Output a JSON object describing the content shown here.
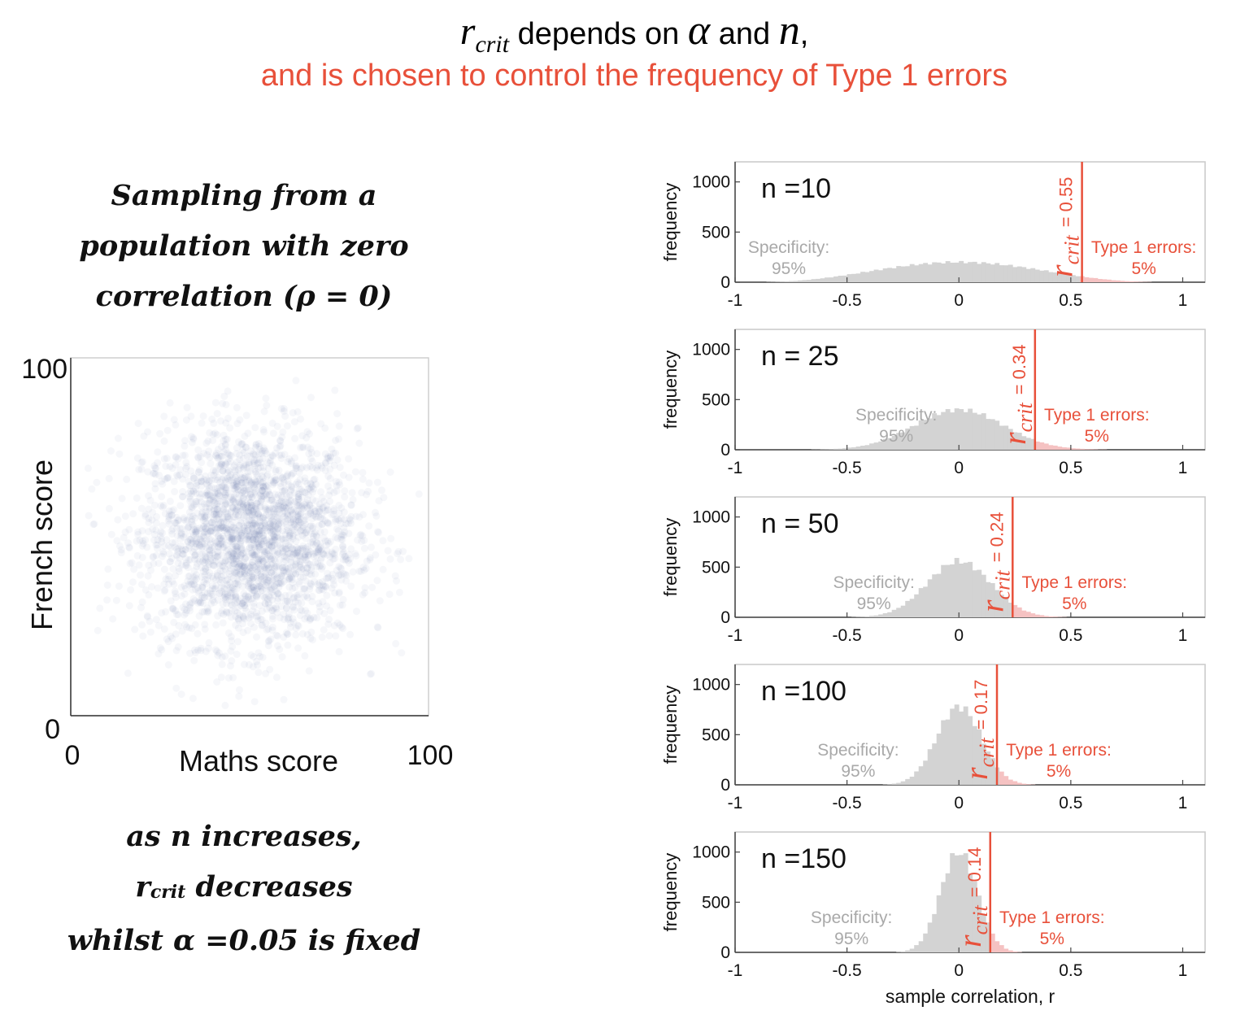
{
  "title": {
    "r_symbol": "r",
    "r_subscript": "crit",
    "depends_on": " depends on ",
    "alpha_symbol": "α",
    "and": " and ",
    "n_symbol": "n",
    "comma": ",",
    "subtitle": "and is chosen to control the frequency of Type 1 errors"
  },
  "left_text": {
    "line1": "Sampling from a",
    "line2": "population with zero",
    "line3": "correlation (ρ = 0)",
    "bottom1": "as n increases,",
    "bottom2_r": "r",
    "bottom2_sub": "crit",
    "bottom2_rest": " decreases",
    "bottom3": "whilst α =0.05 is fixed"
  },
  "colors": {
    "accent": "#e8503a",
    "gray_bars": "#d3d3d3",
    "red_bars": "#f5c2c2",
    "scatter_dot": "#4a5fa0"
  },
  "chart_data": [
    {
      "type": "scatter",
      "xlabel": "Maths score",
      "ylabel": "French score",
      "xlim": [
        0,
        100
      ],
      "ylim": [
        0,
        100
      ],
      "xticks": [
        "0",
        "100"
      ],
      "yticks": [
        "0",
        "100"
      ],
      "population_correlation": 0,
      "center": [
        50,
        50
      ],
      "spread_sd": 15
    },
    {
      "type": "bar",
      "subplots": [
        {
          "n_label": "n =10",
          "n": 10,
          "r_crit": 0.55,
          "r_crit_label": "= 0.55",
          "sd": 0.33
        },
        {
          "n_label": "n = 25",
          "n": 25,
          "r_crit": 0.34,
          "r_crit_label": "= 0.34",
          "sd": 0.2
        },
        {
          "n_label": "n = 50",
          "n": 50,
          "r_crit": 0.24,
          "r_crit_label": "= 0.24",
          "sd": 0.143
        },
        {
          "n_label": "n =100",
          "n": 100,
          "r_crit": 0.17,
          "r_crit_label": "= 0.17",
          "sd": 0.1
        },
        {
          "n_label": "n =150",
          "n": 150,
          "r_crit": 0.14,
          "r_crit_label": "= 0.14",
          "sd": 0.082
        }
      ],
      "peak_frequency": [
        200,
        400,
        560,
        780,
        1000
      ],
      "specificity_label": "Specificity:",
      "specificity_value": "95%",
      "type1_label": "Type 1 errors:",
      "type1_value": "5%",
      "r_symbol": "r",
      "r_subscript": "crit",
      "xlim": [
        -1,
        1.1
      ],
      "ylim": [
        0,
        1200
      ],
      "xticks": [
        "-1",
        "-0.5",
        "0",
        "0.5",
        "1"
      ],
      "yticks": [
        "0",
        "500",
        "1000"
      ],
      "ylabel": "frequency",
      "xlabel": "sample correlation, r"
    }
  ]
}
